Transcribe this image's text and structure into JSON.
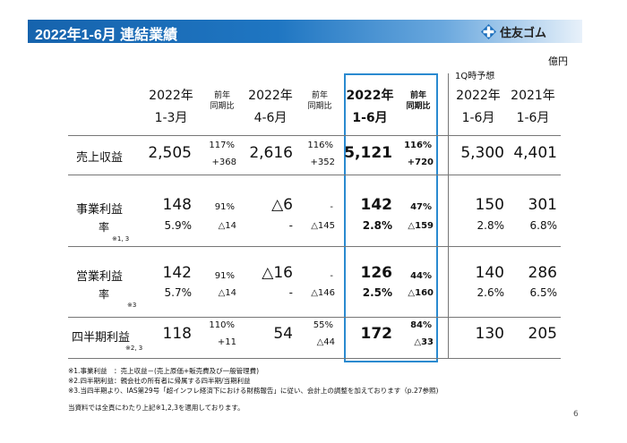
{
  "title": "2022年1-6月 連結業績",
  "logo": {
    "text": "住友ゴム"
  },
  "unit": "億円",
  "forecast_label": "1Q時予想",
  "columns": {
    "c1": {
      "year": "2022年",
      "period": "1-3月"
    },
    "c1y": {
      "line1": "前年",
      "line2": "同期比"
    },
    "c2": {
      "year": "2022年",
      "period": "4-6月"
    },
    "c2y": {
      "line1": "前年",
      "line2": "同期比"
    },
    "c3": {
      "year": "2022年",
      "period": "1-6月"
    },
    "c3y": {
      "line1": "前年",
      "line2": "同期比"
    },
    "c4": {
      "year": "2022年",
      "period": "1-6月"
    },
    "c5": {
      "year": "2021年",
      "period": "1-6月"
    }
  },
  "rows": {
    "sales": {
      "label": "売上収益",
      "c1": "2,505",
      "c1y_a": "117%",
      "c1y_b": "+368",
      "c2": "2,616",
      "c2y_a": "116%",
      "c2y_b": "+352",
      "c3": "5,121",
      "c3y_a": "116%",
      "c3y_b": "+720",
      "c4": "5,300",
      "c5": "4,401"
    },
    "bizprofit": {
      "label": "事業利益",
      "rate_label": "率",
      "note": "※1, 3",
      "c1": "148",
      "c1_rate": "5.9%",
      "c1y_a": "91%",
      "c1y_b": "△14",
      "c2": "△6",
      "c2_rate": "-",
      "c2y_a": "-",
      "c2y_b": "△145",
      "c3": "142",
      "c3_rate": "2.8%",
      "c3y_a": "47%",
      "c3y_b": "△159",
      "c4": "150",
      "c4_rate": "2.8%",
      "c5": "301",
      "c5_rate": "6.8%"
    },
    "opprofit": {
      "label": "営業利益",
      "rate_label": "率",
      "note": "※3",
      "c1": "142",
      "c1_rate": "5.7%",
      "c1y_a": "91%",
      "c1y_b": "△14",
      "c2": "△16",
      "c2_rate": "-",
      "c2y_a": "-",
      "c2y_b": "△146",
      "c3": "126",
      "c3_rate": "2.5%",
      "c3y_a": "44%",
      "c3y_b": "△160",
      "c4": "140",
      "c4_rate": "2.6%",
      "c5": "286",
      "c5_rate": "6.5%"
    },
    "netprofit": {
      "label": "四半期利益",
      "note": "※2, 3",
      "c1": "118",
      "c1y_a": "110%",
      "c1y_b": "+11",
      "c2": "54",
      "c2y_a": "55%",
      "c2y_b": "△44",
      "c3": "172",
      "c3y_a": "84%",
      "c3y_b": "△33",
      "c4": "130",
      "c5": "205"
    }
  },
  "footnotes": [
    "※1.事業利益　：売上収益－(売上原価+販売費及び一般管理費)",
    "※2.四半期利益：親会社の所有者に帰属する四半期/当期利益",
    "※3.当四半期より、IAS第29号「超インフレ経済下における財務報告」に従い、会計上の調整を加えております（p.27参照)",
    "当資料では全頁にわたり上記※1,2,3を適用しております。"
  ],
  "page_number": "6"
}
